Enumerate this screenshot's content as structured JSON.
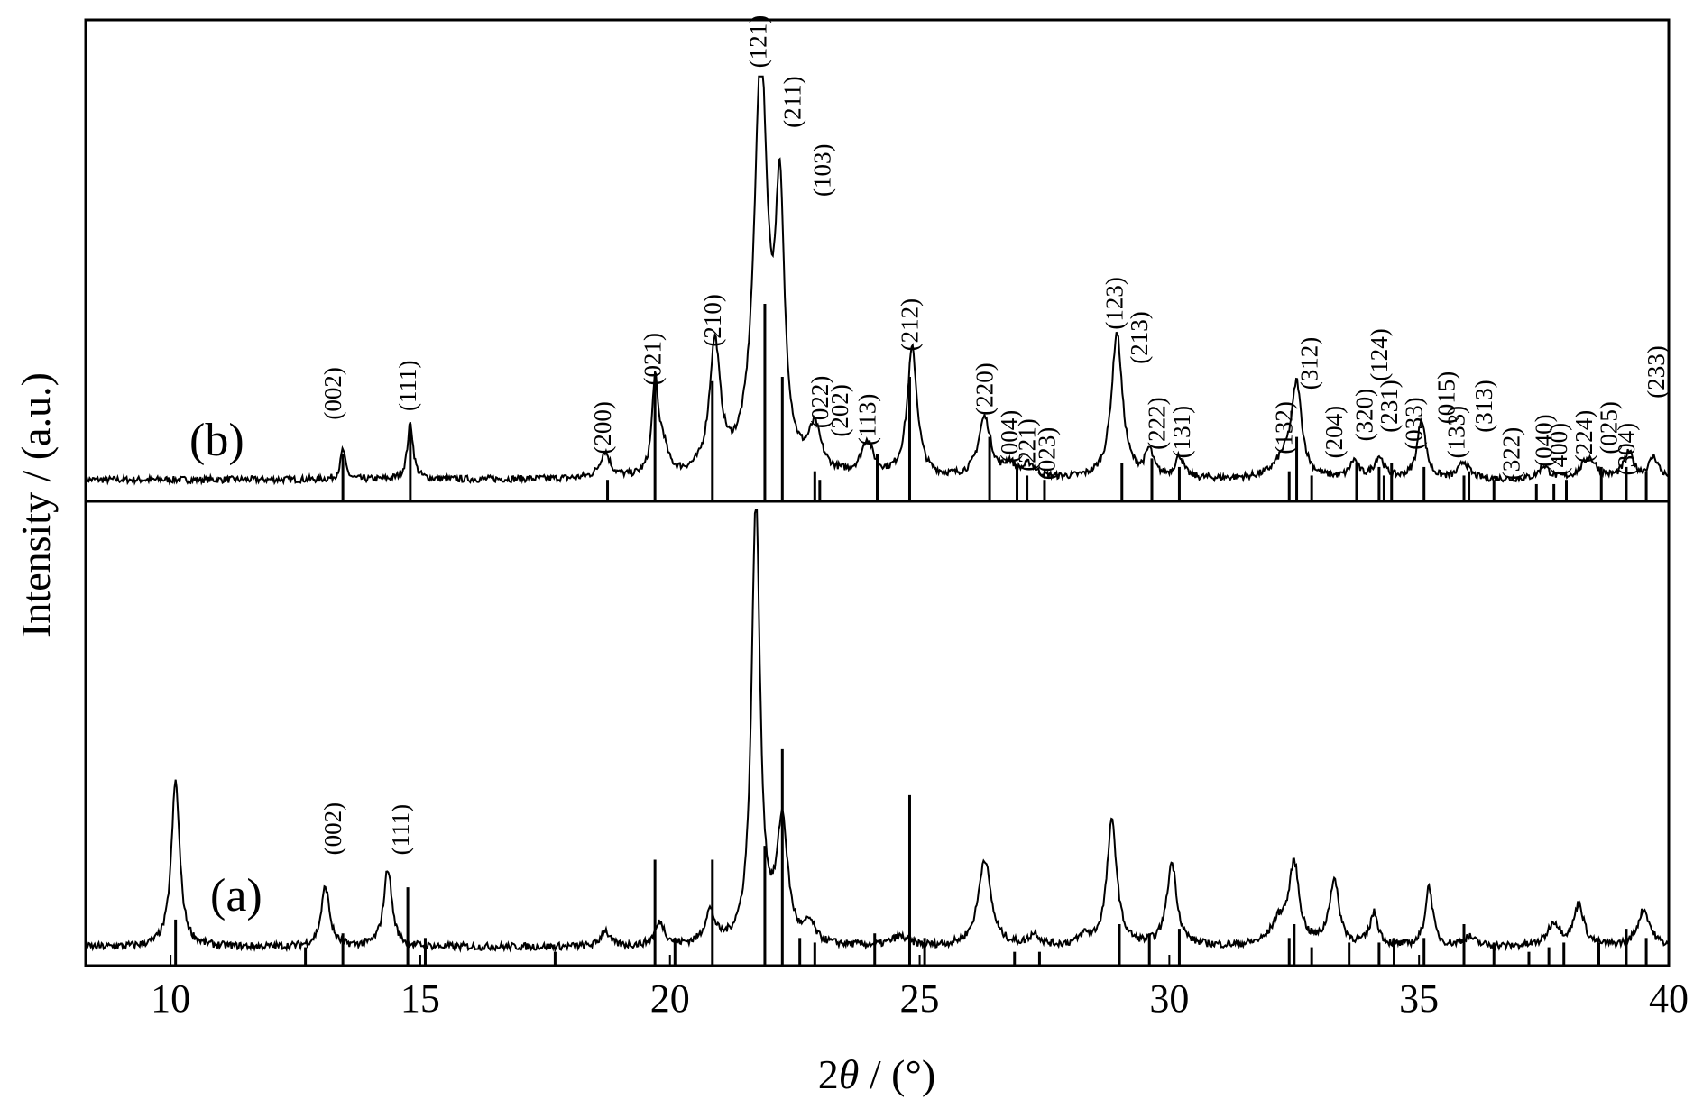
{
  "chart_data": {
    "type": "line",
    "x_axis": {
      "label_parts": [
        "2",
        "θ",
        " / (°)"
      ],
      "range": [
        8.3,
        40
      ],
      "ticks": [
        10,
        15,
        20,
        25,
        30,
        35,
        40
      ],
      "tick_labels": [
        "10",
        "15",
        "20",
        "25",
        "30",
        "35",
        "40"
      ]
    },
    "y_axis": {
      "label": "Intensity / (a.u.)"
    },
    "panels": [
      {
        "id": "b",
        "label": "(b)",
        "baseline": 0.05,
        "noise": 0.008,
        "peaks": [
          [
            13.45,
            0.07,
            0.06
          ],
          [
            14.8,
            0.13,
            0.07
          ],
          [
            18.7,
            0.06,
            0.12
          ],
          [
            19.7,
            0.21,
            0.07
          ],
          [
            19.85,
            0.07,
            0.12
          ],
          [
            20.9,
            0.3,
            0.13
          ],
          [
            21.82,
            0.96,
            0.16
          ],
          [
            22.2,
            0.59,
            0.11
          ],
          [
            22.9,
            0.1,
            0.15
          ],
          [
            23.95,
            0.08,
            0.14
          ],
          [
            24.85,
            0.3,
            0.12
          ],
          [
            26.3,
            0.14,
            0.15
          ],
          [
            26.8,
            0.03,
            0.12
          ],
          [
            27.2,
            0.03,
            0.15
          ],
          [
            28.95,
            0.34,
            0.13
          ],
          [
            29.6,
            0.06,
            0.1
          ],
          [
            30.2,
            0.05,
            0.1
          ],
          [
            32.3,
            0.04,
            0.25
          ],
          [
            32.55,
            0.21,
            0.12
          ],
          [
            33.7,
            0.04,
            0.1
          ],
          [
            34.2,
            0.05,
            0.12
          ],
          [
            35.05,
            0.14,
            0.1
          ],
          [
            35.9,
            0.04,
            0.12
          ],
          [
            37.5,
            0.03,
            0.12
          ],
          [
            38.4,
            0.05,
            0.18
          ],
          [
            39.2,
            0.06,
            0.12
          ],
          [
            39.7,
            0.05,
            0.12
          ]
        ],
        "sticks": [
          [
            13.45,
            0.11
          ],
          [
            14.8,
            0.18
          ],
          [
            18.75,
            0.05
          ],
          [
            19.7,
            0.29
          ],
          [
            20.85,
            0.28
          ],
          [
            21.9,
            0.46
          ],
          [
            22.25,
            0.29
          ],
          [
            22.9,
            0.07
          ],
          [
            23.0,
            0.05
          ],
          [
            24.15,
            0.11
          ],
          [
            24.8,
            0.29
          ],
          [
            26.4,
            0.15
          ],
          [
            26.95,
            0.08
          ],
          [
            27.15,
            0.06
          ],
          [
            27.5,
            0.05
          ],
          [
            29.05,
            0.09
          ],
          [
            29.65,
            0.1
          ],
          [
            30.2,
            0.08
          ],
          [
            32.4,
            0.07
          ],
          [
            32.55,
            0.15
          ],
          [
            32.85,
            0.06
          ],
          [
            33.75,
            0.09
          ],
          [
            34.2,
            0.08
          ],
          [
            34.3,
            0.06
          ],
          [
            34.45,
            0.09
          ],
          [
            35.1,
            0.08
          ],
          [
            35.9,
            0.06
          ],
          [
            36.0,
            0.07
          ],
          [
            36.5,
            0.05
          ],
          [
            37.35,
            0.04
          ],
          [
            37.7,
            0.04
          ],
          [
            37.95,
            0.05
          ],
          [
            38.65,
            0.08
          ],
          [
            39.15,
            0.08
          ],
          [
            39.55,
            0.07
          ]
        ],
        "hkl_labels": [
          [
            "(002)",
            13.3,
            0.19
          ],
          [
            "(111)",
            14.8,
            0.21
          ],
          [
            "(200)",
            18.7,
            0.11
          ],
          [
            "(021)",
            19.7,
            0.27
          ],
          [
            "(210)",
            20.9,
            0.36
          ],
          [
            "(121)",
            21.82,
            1.01
          ],
          [
            "(211)",
            22.5,
            0.87
          ],
          [
            "(103)",
            23.1,
            0.71
          ],
          [
            "(022)",
            23.05,
            0.17
          ],
          [
            "(202)",
            23.45,
            0.15
          ],
          [
            "(113)",
            24.0,
            0.13
          ],
          [
            "(212)",
            24.85,
            0.35
          ],
          [
            "(220)",
            26.35,
            0.2
          ],
          [
            "(004)",
            26.85,
            0.09
          ],
          [
            "(221)",
            27.2,
            0.07
          ],
          [
            "(023)",
            27.6,
            0.05
          ],
          [
            "(123)",
            28.95,
            0.4
          ],
          [
            "(213)",
            29.45,
            0.32
          ],
          [
            "(222)",
            29.8,
            0.12
          ],
          [
            "(131)",
            30.3,
            0.1
          ],
          [
            "(132)",
            32.35,
            0.11
          ],
          [
            "(312)",
            32.85,
            0.26
          ],
          [
            "(204)",
            33.35,
            0.1
          ],
          [
            "(320)",
            33.95,
            0.14
          ],
          [
            "(124)",
            34.25,
            0.28
          ],
          [
            "(231)",
            34.45,
            0.16
          ],
          [
            "(033)",
            34.95,
            0.12
          ],
          [
            "(015)",
            35.6,
            0.18
          ],
          [
            "(133)",
            35.8,
            0.1
          ],
          [
            "(313)",
            36.35,
            0.16
          ],
          [
            "(322)",
            36.9,
            0.05
          ],
          [
            "(040)",
            37.55,
            0.08
          ],
          [
            "(400)",
            37.85,
            0.06
          ],
          [
            "(224)",
            38.35,
            0.09
          ],
          [
            "(025)",
            38.85,
            0.11
          ],
          [
            "(304)",
            39.2,
            0.06
          ],
          [
            "(233)",
            39.8,
            0.24
          ]
        ]
      },
      {
        "id": "a",
        "label": "(a)",
        "baseline": 0.04,
        "noise": 0.008,
        "peaks": [
          [
            10.1,
            0.36,
            0.1
          ],
          [
            13.1,
            0.13,
            0.1
          ],
          [
            14.35,
            0.17,
            0.1
          ],
          [
            18.7,
            0.035,
            0.1
          ],
          [
            19.8,
            0.05,
            0.12
          ],
          [
            20.8,
            0.07,
            0.12
          ],
          [
            21.72,
            0.97,
            0.1
          ],
          [
            22.25,
            0.26,
            0.13
          ],
          [
            22.8,
            0.04,
            0.12
          ],
          [
            24.6,
            0.02,
            0.2
          ],
          [
            26.3,
            0.19,
            0.15
          ],
          [
            27.3,
            0.025,
            0.12
          ],
          [
            28.3,
            0.02,
            0.12
          ],
          [
            28.85,
            0.27,
            0.12
          ],
          [
            30.05,
            0.18,
            0.12
          ],
          [
            32.2,
            0.05,
            0.2
          ],
          [
            32.5,
            0.17,
            0.12
          ],
          [
            33.3,
            0.14,
            0.12
          ],
          [
            34.1,
            0.07,
            0.1
          ],
          [
            35.2,
            0.13,
            0.09
          ],
          [
            36.0,
            0.02,
            0.15
          ],
          [
            37.7,
            0.05,
            0.15
          ],
          [
            38.2,
            0.09,
            0.12
          ],
          [
            39.5,
            0.08,
            0.15
          ]
        ],
        "sticks": [
          [
            10.1,
            0.1
          ],
          [
            12.7,
            0.04
          ],
          [
            13.45,
            0.07
          ],
          [
            14.75,
            0.17
          ],
          [
            15.1,
            0.06
          ],
          [
            17.7,
            0.03
          ],
          [
            19.7,
            0.23
          ],
          [
            20.1,
            0.06
          ],
          [
            20.85,
            0.23
          ],
          [
            21.9,
            0.26
          ],
          [
            22.25,
            0.47
          ],
          [
            22.6,
            0.06
          ],
          [
            22.9,
            0.05
          ],
          [
            24.1,
            0.07
          ],
          [
            24.8,
            0.37
          ],
          [
            25.1,
            0.06
          ],
          [
            26.9,
            0.03
          ],
          [
            27.4,
            0.03
          ],
          [
            29.0,
            0.09
          ],
          [
            29.6,
            0.07
          ],
          [
            30.2,
            0.08
          ],
          [
            32.4,
            0.06
          ],
          [
            32.5,
            0.09
          ],
          [
            32.85,
            0.04
          ],
          [
            33.6,
            0.05
          ],
          [
            34.2,
            0.05
          ],
          [
            34.5,
            0.06
          ],
          [
            35.1,
            0.06
          ],
          [
            35.9,
            0.09
          ],
          [
            36.5,
            0.05
          ],
          [
            37.2,
            0.03
          ],
          [
            37.6,
            0.04
          ],
          [
            37.9,
            0.05
          ],
          [
            38.6,
            0.05
          ],
          [
            39.15,
            0.08
          ],
          [
            39.55,
            0.06
          ]
        ],
        "hkl_labels": [
          [
            "(002)",
            13.3,
            0.24
          ],
          [
            "(111)",
            14.65,
            0.24
          ]
        ]
      }
    ]
  }
}
